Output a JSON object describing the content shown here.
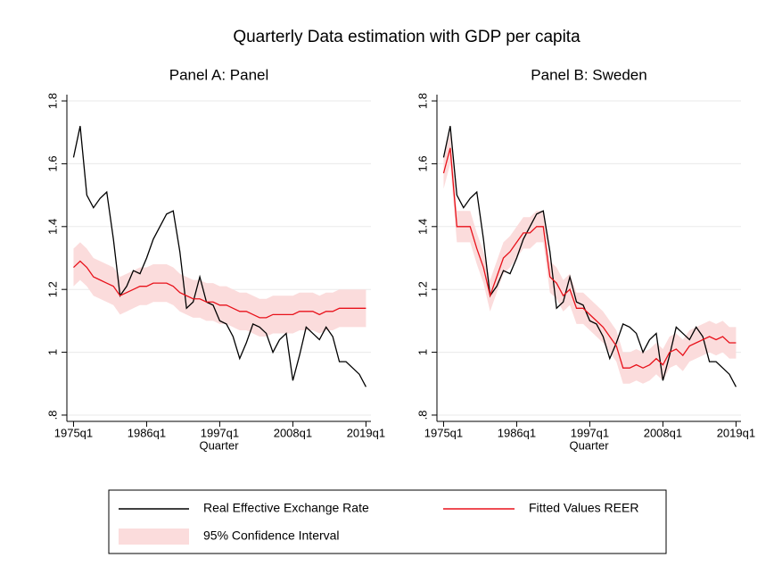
{
  "title": "Quarterly Data estimation with GDP per capita",
  "chart_data": [
    {
      "type": "line",
      "title": "Panel A: Panel",
      "xlabel": "Quarter",
      "x": [
        60,
        64,
        68,
        72,
        76,
        80,
        84,
        88,
        92,
        96,
        100,
        104,
        108,
        112,
        116,
        120,
        124,
        128,
        132,
        136,
        140,
        144,
        148,
        152,
        156,
        160,
        164,
        168,
        172,
        176,
        180,
        184,
        188,
        192,
        196,
        200,
        204,
        208,
        212,
        216,
        220,
        224,
        228,
        232,
        236
      ],
      "xlim": [
        56,
        239
      ],
      "xticks": [
        {
          "value": 60,
          "label": "1975q1"
        },
        {
          "value": 104,
          "label": "1986q1"
        },
        {
          "value": 148,
          "label": "1997q1"
        },
        {
          "value": 192,
          "label": "2008q1"
        },
        {
          "value": 236,
          "label": "2019q1"
        }
      ],
      "ylim": [
        0.78,
        1.82
      ],
      "yticks": [
        {
          "value": 0.8,
          "label": ".8"
        },
        1,
        1.2,
        1.4,
        1.6,
        1.8
      ],
      "grid": true,
      "band": {
        "name": "95% Confidence Interval",
        "color": "#fbdcdc",
        "lower": [
          1.21,
          1.23,
          1.21,
          1.18,
          1.17,
          1.16,
          1.15,
          1.12,
          1.13,
          1.14,
          1.15,
          1.15,
          1.16,
          1.16,
          1.16,
          1.15,
          1.13,
          1.12,
          1.11,
          1.11,
          1.1,
          1.1,
          1.09,
          1.09,
          1.08,
          1.07,
          1.07,
          1.06,
          1.05,
          1.05,
          1.06,
          1.06,
          1.06,
          1.06,
          1.07,
          1.07,
          1.07,
          1.06,
          1.07,
          1.07,
          1.08,
          1.08,
          1.08,
          1.08,
          1.08
        ],
        "upper": [
          1.33,
          1.35,
          1.33,
          1.3,
          1.29,
          1.28,
          1.27,
          1.24,
          1.25,
          1.26,
          1.27,
          1.27,
          1.28,
          1.28,
          1.28,
          1.27,
          1.25,
          1.24,
          1.23,
          1.23,
          1.22,
          1.22,
          1.21,
          1.21,
          1.2,
          1.19,
          1.19,
          1.18,
          1.17,
          1.17,
          1.18,
          1.18,
          1.18,
          1.18,
          1.19,
          1.19,
          1.19,
          1.18,
          1.19,
          1.19,
          1.2,
          1.2,
          1.2,
          1.2,
          1.2
        ]
      },
      "series": [
        {
          "name": "Real Effective Exchange Rate",
          "color": "#000000",
          "values": [
            1.62,
            1.72,
            1.5,
            1.46,
            1.49,
            1.51,
            1.36,
            1.18,
            1.21,
            1.26,
            1.25,
            1.3,
            1.36,
            1.4,
            1.44,
            1.45,
            1.32,
            1.14,
            1.16,
            1.24,
            1.16,
            1.15,
            1.1,
            1.09,
            1.05,
            0.98,
            1.03,
            1.09,
            1.08,
            1.06,
            1.0,
            1.04,
            1.06,
            0.91,
            0.99,
            1.08,
            1.06,
            1.04,
            1.08,
            1.05,
            0.97,
            0.97,
            0.95,
            0.93,
            0.89
          ]
        },
        {
          "name": "Fitted Values REER",
          "color": "#e8121b",
          "values": [
            1.27,
            1.29,
            1.27,
            1.24,
            1.23,
            1.22,
            1.21,
            1.18,
            1.19,
            1.2,
            1.21,
            1.21,
            1.22,
            1.22,
            1.22,
            1.21,
            1.19,
            1.18,
            1.17,
            1.17,
            1.16,
            1.16,
            1.15,
            1.15,
            1.14,
            1.13,
            1.13,
            1.12,
            1.11,
            1.11,
            1.12,
            1.12,
            1.12,
            1.12,
            1.13,
            1.13,
            1.13,
            1.12,
            1.13,
            1.13,
            1.14,
            1.14,
            1.14,
            1.14,
            1.14
          ]
        }
      ]
    },
    {
      "type": "line",
      "title": "Panel B: Sweden",
      "xlabel": "Quarter",
      "x": [
        60,
        64,
        68,
        72,
        76,
        80,
        84,
        88,
        92,
        96,
        100,
        104,
        108,
        112,
        116,
        120,
        124,
        128,
        132,
        136,
        140,
        144,
        148,
        152,
        156,
        160,
        164,
        168,
        172,
        176,
        180,
        184,
        188,
        192,
        196,
        200,
        204,
        208,
        212,
        216,
        220,
        224,
        228,
        232,
        236
      ],
      "xlim": [
        56,
        239
      ],
      "xticks": [
        {
          "value": 60,
          "label": "1975q1"
        },
        {
          "value": 104,
          "label": "1986q1"
        },
        {
          "value": 148,
          "label": "1997q1"
        },
        {
          "value": 192,
          "label": "2008q1"
        },
        {
          "value": 236,
          "label": "2019q1"
        }
      ],
      "ylim": [
        0.78,
        1.82
      ],
      "yticks": [
        {
          "value": 0.8,
          "label": ".8"
        },
        1,
        1.2,
        1.4,
        1.6,
        1.8
      ],
      "grid": true,
      "band": {
        "color": "#fbdcdc",
        "lower": [
          1.52,
          1.6,
          1.35,
          1.35,
          1.35,
          1.28,
          1.22,
          1.13,
          1.19,
          1.25,
          1.27,
          1.3,
          1.33,
          1.33,
          1.35,
          1.35,
          1.19,
          1.17,
          1.13,
          1.15,
          1.09,
          1.09,
          1.07,
          1.05,
          1.03,
          1.0,
          0.97,
          0.9,
          0.9,
          0.91,
          0.9,
          0.91,
          0.93,
          0.91,
          0.95,
          0.96,
          0.94,
          0.97,
          0.98,
          0.99,
          1.0,
          0.99,
          1.0,
          0.98,
          0.98
        ],
        "upper": [
          1.62,
          1.7,
          1.45,
          1.45,
          1.45,
          1.38,
          1.32,
          1.23,
          1.29,
          1.35,
          1.37,
          1.4,
          1.43,
          1.43,
          1.45,
          1.45,
          1.29,
          1.27,
          1.23,
          1.25,
          1.19,
          1.19,
          1.17,
          1.15,
          1.13,
          1.1,
          1.07,
          1.0,
          1.0,
          1.01,
          1.0,
          1.01,
          1.03,
          1.01,
          1.05,
          1.06,
          1.04,
          1.07,
          1.08,
          1.09,
          1.1,
          1.09,
          1.1,
          1.08,
          1.08
        ]
      },
      "series": [
        {
          "color": "#000000",
          "values": [
            1.62,
            1.72,
            1.5,
            1.46,
            1.49,
            1.51,
            1.36,
            1.18,
            1.21,
            1.26,
            1.25,
            1.3,
            1.36,
            1.4,
            1.44,
            1.45,
            1.32,
            1.14,
            1.16,
            1.24,
            1.16,
            1.15,
            1.1,
            1.09,
            1.05,
            0.98,
            1.03,
            1.09,
            1.08,
            1.06,
            1.0,
            1.04,
            1.06,
            0.91,
            0.99,
            1.08,
            1.06,
            1.04,
            1.08,
            1.05,
            0.97,
            0.97,
            0.95,
            0.93,
            0.89
          ]
        },
        {
          "color": "#e8121b",
          "values": [
            1.57,
            1.65,
            1.4,
            1.4,
            1.4,
            1.33,
            1.27,
            1.18,
            1.24,
            1.3,
            1.32,
            1.35,
            1.38,
            1.38,
            1.4,
            1.4,
            1.24,
            1.22,
            1.18,
            1.2,
            1.14,
            1.14,
            1.12,
            1.1,
            1.08,
            1.05,
            1.02,
            0.95,
            0.95,
            0.96,
            0.95,
            0.96,
            0.98,
            0.96,
            1.0,
            1.01,
            0.99,
            1.02,
            1.03,
            1.04,
            1.05,
            1.04,
            1.05,
            1.03,
            1.03
          ]
        }
      ]
    }
  ]
}
